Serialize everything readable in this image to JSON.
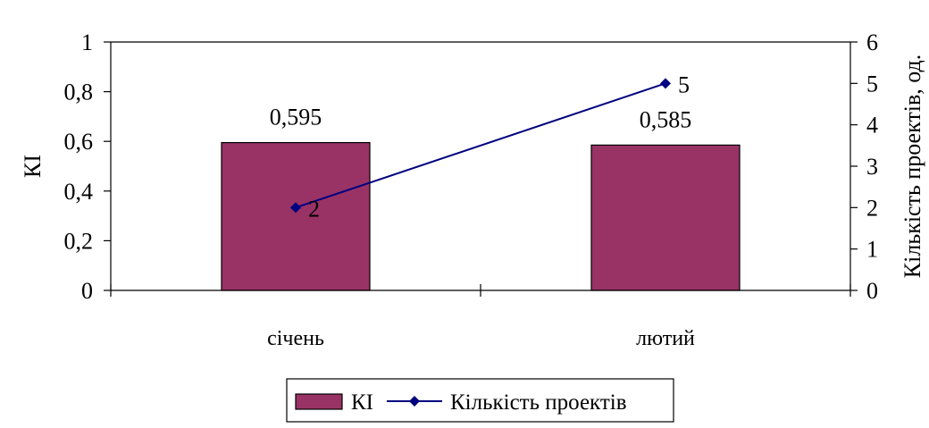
{
  "chart_data": {
    "type": "bar",
    "categories": [
      "січень",
      "лютий"
    ],
    "series": [
      {
        "name": "КІ",
        "type": "bar",
        "axis": "left",
        "values": [
          0.595,
          0.585
        ],
        "data_labels": [
          "0,595",
          "0,585"
        ],
        "color": "#993366"
      },
      {
        "name": "Кількість проектів",
        "type": "line",
        "axis": "right",
        "values": [
          2,
          5
        ],
        "data_labels": [
          "2",
          "5"
        ],
        "color": "#000080"
      }
    ],
    "y_left": {
      "label": "КІ",
      "ylim": [
        0,
        1
      ],
      "ticks": [
        0,
        0.2,
        0.4,
        0.6,
        0.8,
        1
      ],
      "tick_labels": [
        "0",
        "0,2",
        "0,4",
        "0,6",
        "0,8",
        "1"
      ]
    },
    "y_right": {
      "label": "Кількість проектів, од.",
      "ylim": [
        0,
        6
      ],
      "ticks": [
        0,
        1,
        2,
        3,
        4,
        5,
        6
      ],
      "tick_labels": [
        "0",
        "1",
        "2",
        "3",
        "4",
        "5",
        "6"
      ]
    },
    "xlabel": "",
    "grid": false,
    "legend": {
      "position": "bottom",
      "entries": [
        "КІ",
        "Кількість проектів"
      ]
    }
  }
}
